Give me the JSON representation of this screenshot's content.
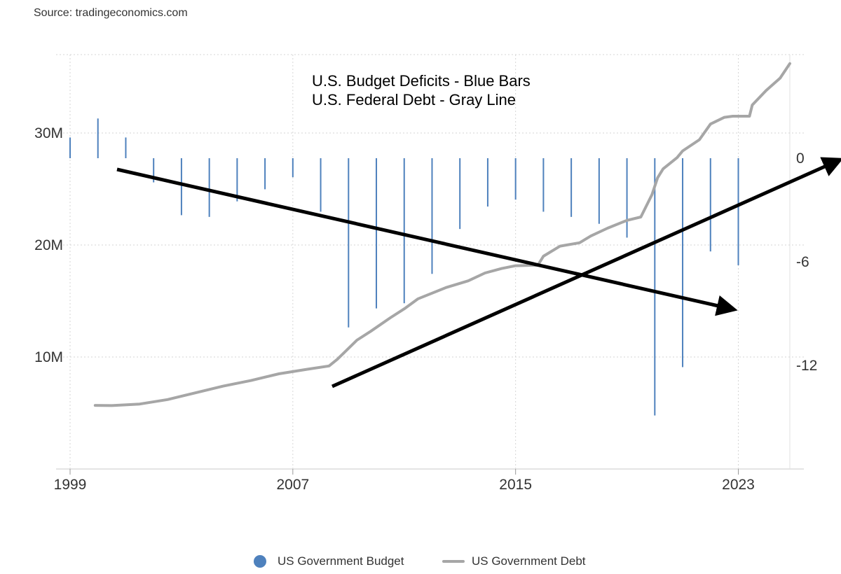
{
  "source": "Source: tradingeconomics.com",
  "colors": {
    "budget": "#4e81bd",
    "debt": "#a6a6a6",
    "arrow": "#000000",
    "grid": "#d6d6d6"
  },
  "annotations": [
    "U.S. Budget Deficits - Blue Bars",
    "U.S. Federal Debt - Gray Line"
  ],
  "legend": {
    "budget_label": "US Government Budget",
    "debt_label": "US Government Debt"
  },
  "chart_data": {
    "type": "bar+line",
    "title": "",
    "xaxis": {
      "ticks": [
        1999,
        2007,
        2015,
        2023
      ],
      "tick_labels": [
        "1999",
        "2007",
        "2015",
        "2023"
      ],
      "range": [
        1999,
        2024.85
      ]
    },
    "left_axis": {
      "ticks": [
        10000000,
        20000000,
        30000000
      ],
      "tick_labels": [
        "10M",
        "20M",
        "30M"
      ],
      "range": [
        0,
        37000000
      ]
    },
    "right_axis": {
      "ticks": [
        0,
        -6,
        -12
      ],
      "tick_labels": [
        "0",
        "-6",
        "-12"
      ],
      "range": [
        -18,
        6
      ]
    },
    "series": [
      {
        "name": "US Government Budget",
        "type": "bar",
        "axis": "right",
        "x": [
          1999,
          2000,
          2001,
          2002,
          2003,
          2004,
          2005,
          2006,
          2007,
          2008,
          2009,
          2010,
          2011,
          2012,
          2013,
          2014,
          2015,
          2016,
          2017,
          2018,
          2019,
          2020,
          2021,
          2022,
          2023
        ],
        "values": [
          1.2,
          2.3,
          1.2,
          -1.4,
          -3.3,
          -3.4,
          -2.5,
          -1.8,
          -1.1,
          -3.1,
          -9.8,
          -8.7,
          -8.4,
          -6.7,
          -4.1,
          -2.8,
          -2.4,
          -3.1,
          -3.4,
          -3.8,
          -4.6,
          -14.9,
          -12.1,
          -5.4,
          -6.2
        ]
      },
      {
        "name": "US Government Debt",
        "type": "line",
        "axis": "left",
        "x": [
          1999.9,
          2000.5,
          2001.5,
          2002.5,
          2003.5,
          2004.5,
          2005.5,
          2006.5,
          2007.5,
          2008.3,
          2008.6,
          2009.3,
          2009.8,
          2010.5,
          2011.0,
          2011.5,
          2012.5,
          2013.3,
          2013.9,
          2014.5,
          2015.0,
          2015.8,
          2016.0,
          2016.6,
          2017.3,
          2017.7,
          2018.3,
          2019.0,
          2019.5,
          2019.9,
          2020.1,
          2020.3,
          2020.8,
          2021.0,
          2021.6,
          2022.0,
          2022.5,
          2022.8,
          2023.4,
          2023.5,
          2024.0,
          2024.5,
          2024.85
        ],
        "values": [
          5680000,
          5660000,
          5800000,
          6200000,
          6800000,
          7400000,
          7900000,
          8500000,
          8900000,
          9200000,
          9800000,
          11500000,
          12300000,
          13500000,
          14300000,
          15200000,
          16200000,
          16800000,
          17500000,
          17900000,
          18150000,
          18200000,
          19000000,
          19900000,
          20200000,
          20800000,
          21500000,
          22200000,
          22500000,
          24500000,
          26000000,
          26800000,
          27800000,
          28400000,
          29400000,
          30800000,
          31400000,
          31500000,
          31500000,
          32500000,
          33800000,
          34900000,
          36200000
        ]
      }
    ]
  }
}
